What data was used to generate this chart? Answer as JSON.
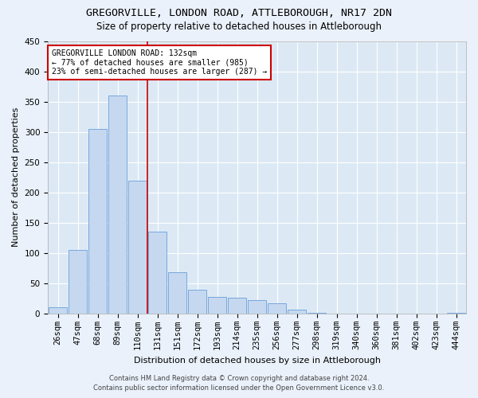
{
  "title1": "GREGORVILLE, LONDON ROAD, ATTLEBOROUGH, NR17 2DN",
  "title2": "Size of property relative to detached houses in Attleborough",
  "xlabel": "Distribution of detached houses by size in Attleborough",
  "ylabel": "Number of detached properties",
  "footer1": "Contains HM Land Registry data © Crown copyright and database right 2024.",
  "footer2": "Contains public sector information licensed under the Open Government Licence v3.0.",
  "annotation_title": "GREGORVILLE LONDON ROAD: 132sqm",
  "annotation_line1": "← 77% of detached houses are smaller (985)",
  "annotation_line2": "23% of semi-detached houses are larger (287) →",
  "bar_color": "#c5d8f0",
  "bar_edge_color": "#6a9fd8",
  "vline_color": "#cc0000",
  "categories": [
    "26sqm",
    "47sqm",
    "68sqm",
    "89sqm",
    "110sqm",
    "131sqm",
    "151sqm",
    "172sqm",
    "193sqm",
    "214sqm",
    "235sqm",
    "256sqm",
    "277sqm",
    "298sqm",
    "319sqm",
    "340sqm",
    "360sqm",
    "381sqm",
    "402sqm",
    "423sqm",
    "444sqm"
  ],
  "values": [
    10,
    105,
    305,
    360,
    220,
    135,
    68,
    40,
    28,
    26,
    22,
    17,
    6,
    1,
    0,
    0,
    0,
    0,
    0,
    0,
    1
  ],
  "ylim": [
    0,
    450
  ],
  "yticks": [
    0,
    50,
    100,
    150,
    200,
    250,
    300,
    350,
    400,
    450
  ],
  "plot_bg_color": "#dce9f5",
  "grid_color": "#ffffff",
  "fig_bg_color": "#eaf1fa",
  "title1_fontsize": 9.5,
  "title2_fontsize": 8.5,
  "xlabel_fontsize": 8,
  "ylabel_fontsize": 8,
  "tick_fontsize": 7.5,
  "annotation_fontsize": 7,
  "footer_fontsize": 6
}
